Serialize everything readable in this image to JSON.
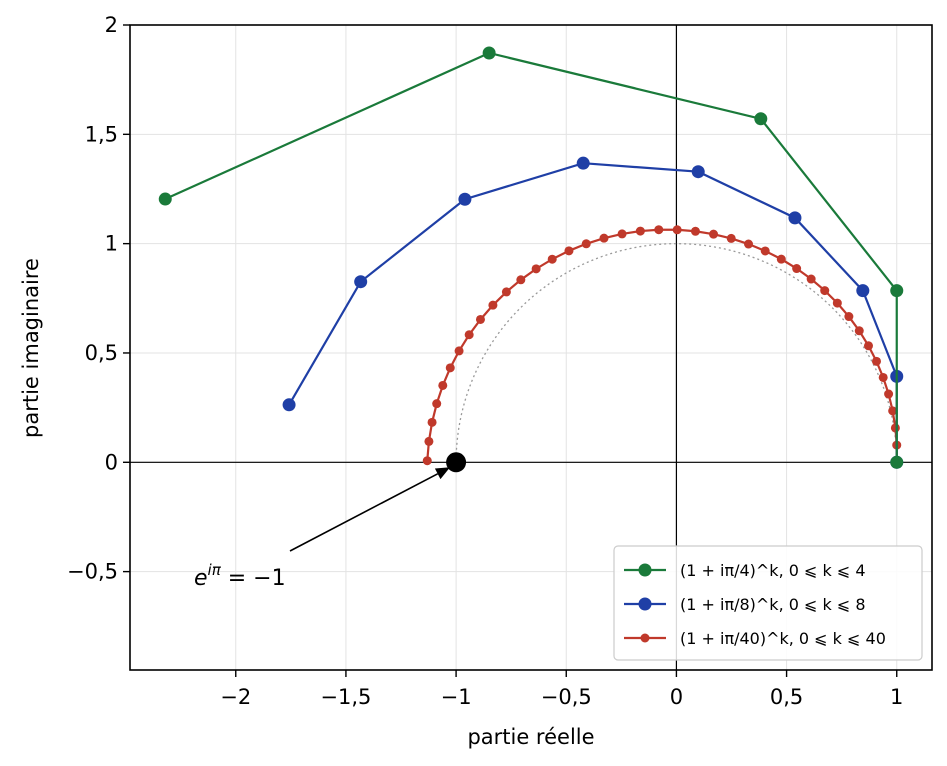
{
  "chart_data": {
    "type": "line",
    "xlabel": "partie réelle",
    "ylabel": "partie imaginaire",
    "xlim": [
      -2.48,
      1.16
    ],
    "ylim": [
      -0.95,
      2.0
    ],
    "xticks": [
      -2,
      -1.5,
      -1,
      -0.5,
      0,
      0.5,
      1
    ],
    "xtick_labels": [
      "−2",
      "−1,5",
      "−1",
      "−0,5",
      "0",
      "0,5",
      "1"
    ],
    "yticks": [
      -0.5,
      0,
      0.5,
      1,
      1.5,
      2
    ],
    "ytick_labels": [
      "−0,5",
      "0",
      "0,5",
      "1",
      "1,5",
      "2"
    ],
    "grid": true,
    "legend_position": "bottom-right",
    "reference_curve": "unit half-circle (dotted, grey)",
    "series": [
      {
        "name": "(1 + iπ/4)^k, 0 ⩽ k ⩽ 4",
        "n": 4,
        "color": "#1a7a3a",
        "values": [
          [
            1,
            0
          ],
          [
            1,
            0.785
          ],
          [
            0.383,
            1.571
          ],
          [
            -0.85,
            1.872
          ],
          [
            -2.32,
            1.204
          ]
        ]
      },
      {
        "name": "(1 + iπ/8)^k, 0 ⩽ k ⩽ 8",
        "n": 8,
        "color": "#1f3fa6",
        "values": [
          [
            1,
            0
          ],
          [
            1,
            0.393
          ],
          [
            0.846,
            0.785
          ],
          [
            0.538,
            1.118
          ],
          [
            0.099,
            1.329
          ],
          [
            -0.423,
            1.368
          ],
          [
            -0.96,
            1.203
          ],
          [
            -1.433,
            0.826
          ],
          [
            -1.758,
            0.263
          ]
        ]
      },
      {
        "name": "(1 + iπ/40)^k, 0 ⩽ k ⩽ 40",
        "n": 40,
        "color": "#c0392b",
        "values": []
      }
    ],
    "annotation": {
      "text_prefix": "e",
      "text_sup": "iπ",
      "text_suffix": " = −1",
      "point": [
        -1,
        0
      ]
    }
  }
}
